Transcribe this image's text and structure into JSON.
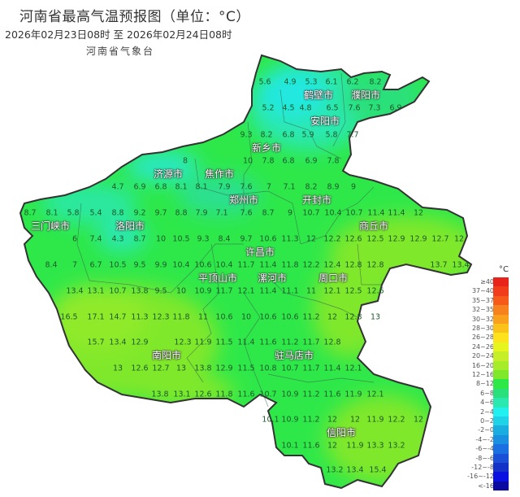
{
  "header": {
    "title": "河南省最高气温预报图（单位：°C）",
    "period": "2026年02月23日08时  至  2026年02月24日08时",
    "agency": "河南省气象台"
  },
  "legend": {
    "unit": "°C",
    "items": [
      {
        "label": "≥40",
        "color": "#e8231a"
      },
      {
        "label": "37~40",
        "color": "#f03c1a"
      },
      {
        "label": "35~37",
        "color": "#f55a1a"
      },
      {
        "label": "32~35",
        "color": "#f7801f"
      },
      {
        "label": "30~32",
        "color": "#f9a01c"
      },
      {
        "label": "28~30",
        "color": "#fbc21a"
      },
      {
        "label": "26~28",
        "color": "#fde21c"
      },
      {
        "label": "24~26",
        "color": "#e6f51e"
      },
      {
        "label": "20~24",
        "color": "#c6ef2a"
      },
      {
        "label": "16~20",
        "color": "#a6ec2a"
      },
      {
        "label": "12~16",
        "color": "#80e82a"
      },
      {
        "label": "8~12",
        "color": "#2ee84a"
      },
      {
        "label": "6~8",
        "color": "#2ae07a"
      },
      {
        "label": "4~6",
        "color": "#2ae8b0"
      },
      {
        "label": "2~4",
        "color": "#22f0f0"
      },
      {
        "label": "0~2",
        "color": "#1ed2e8"
      },
      {
        "label": "-2~0",
        "color": "#1aaee0"
      },
      {
        "label": "-4~-2",
        "color": "#1a90e0"
      },
      {
        "label": "-6~-4",
        "color": "#1a70e0"
      },
      {
        "label": "-8~-6",
        "color": "#1a50d8"
      },
      {
        "label": "-12~-8",
        "color": "#1432c8"
      },
      {
        "label": "-16~-12",
        "color": "#0a10e0"
      },
      {
        "label": "<-16",
        "color": "#0a0aa0"
      }
    ]
  },
  "map": {
    "cities": [
      "濮阳市",
      "鹤壁市",
      "安阳市",
      "新乡市",
      "济源市",
      "焦作市",
      "郑州市",
      "开封市",
      "商丘市",
      "三门峡市",
      "洛阳市",
      "许昌市",
      "平顶山市",
      "漯河市",
      "周口市",
      "南阳市",
      "驻马店市",
      "信阳市"
    ],
    "values": [
      "5.6",
      "4.9",
      "5.3",
      "6.1",
      "6.2",
      "8.2",
      "5.2",
      "4.5",
      "4.8",
      "6.5",
      "7.6",
      "7.3",
      "6.9",
      "9.3",
      "8.2",
      "6.8",
      "5.9",
      "5.8",
      "7.7",
      "8",
      "10",
      "7.8",
      "6.8",
      "6.9",
      "7.8",
      "4.7",
      "6.9",
      "6.8",
      "8.1",
      "8.1",
      "7.9",
      "7.6",
      "7",
      "7.1",
      "8.2",
      "8.9",
      "9",
      "8.7",
      "8.1",
      "5.8",
      "5.4",
      "8.8",
      "9.2",
      "9.7",
      "8.8",
      "7.9",
      "7.1",
      "7.6",
      "8.7",
      "9",
      "10.7",
      "10.4",
      "10.7",
      "11.4",
      "11.4",
      "12",
      "6",
      "7.4",
      "4.3",
      "8.7",
      "10",
      "10.5",
      "9.3",
      "8.4",
      "9.7",
      "10.6",
      "11.3",
      "12",
      "12.2",
      "12.6",
      "12.5",
      "12.9",
      "12.9",
      "12.7",
      "12",
      "8.4",
      "7",
      "6.7",
      "10.5",
      "9.5",
      "9.9",
      "10.4",
      "10.6",
      "10.4",
      "11.7",
      "11.4",
      "11.8",
      "12.2",
      "12.4",
      "12.8",
      "12.8",
      "13.7",
      "13.4",
      "13.4",
      "13.1",
      "10.7",
      "13.8",
      "9.5",
      "10",
      "10.9",
      "11.7",
      "12.1",
      "11.4",
      "11.1",
      "11",
      "12.1",
      "12.5",
      "12.6",
      "16.5",
      "17.1",
      "14.7",
      "11.3",
      "12.3",
      "11.8",
      "11",
      "10.6",
      "10",
      "10.6",
      "10.6",
      "11.2",
      "12",
      "12.8",
      "13",
      "15.7",
      "13.4",
      "12.9",
      "12.3",
      "11.9",
      "11.5",
      "11.4",
      "11.6",
      "11.2",
      "11.7",
      "12.8",
      "13",
      "12.6",
      "12.7",
      "13",
      "13.8",
      "12.9",
      "11.5",
      "10.8",
      "10.7",
      "11.7",
      "11.4",
      "12.1",
      "13.8",
      "13.1",
      "12.6",
      "11.8",
      "11.6",
      "10.7",
      "10.9",
      "11.2",
      "11.6",
      "11.9",
      "12.1",
      "10.1",
      "10.9",
      "11.2",
      "12",
      "12",
      "11.9",
      "12.2",
      "12",
      "10.1",
      "11.6",
      "12",
      "11.9",
      "13.3",
      "13.2",
      "13.2",
      "13.4",
      "15.4"
    ]
  }
}
